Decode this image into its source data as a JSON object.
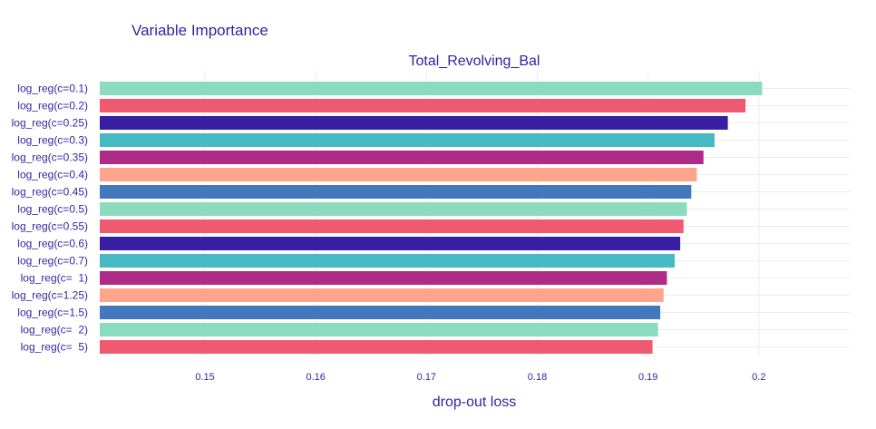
{
  "chart_data": {
    "type": "bar",
    "orientation": "horizontal",
    "title": "Variable Importance",
    "subtitle": "Total_Revolving_Bal",
    "xlabel": "drop-out loss",
    "xlim": [
      0.1405,
      0.2082
    ],
    "xticks": [
      "0.15",
      "0.16",
      "0.17",
      "0.18",
      "0.19",
      "0.2"
    ],
    "grid": true,
    "categories": [
      "log_reg(c=0.1)",
      "log_reg(c=0.2)",
      "log_reg(c=0.25)",
      "log_reg(c=0.3)",
      "log_reg(c=0.35)",
      "log_reg(c=0.4)",
      "log_reg(c=0.45)",
      "log_reg(c=0.5)",
      "log_reg(c=0.55)",
      "log_reg(c=0.6)",
      "log_reg(c=0.7)",
      "log_reg(c=  1)",
      "log_reg(c=1.25)",
      "log_reg(c=1.5)",
      "log_reg(c=  2)",
      "log_reg(c=  5)"
    ],
    "values": [
      0.2003,
      0.1988,
      0.1972,
      0.196,
      0.195,
      0.1944,
      0.1939,
      0.1935,
      0.1932,
      0.1929,
      0.1924,
      0.1917,
      0.1914,
      0.1911,
      0.1909,
      0.1904
    ],
    "colors": [
      "#8bdcbe",
      "#f05a71",
      "#371ea3",
      "#46bac2",
      "#ae2c87",
      "#ffa58c",
      "#4378bf",
      "#8bdcbe",
      "#f05a71",
      "#371ea3",
      "#46bac2",
      "#ae2c87",
      "#ffa58c",
      "#4378bf",
      "#8bdcbe",
      "#f05a71"
    ]
  }
}
